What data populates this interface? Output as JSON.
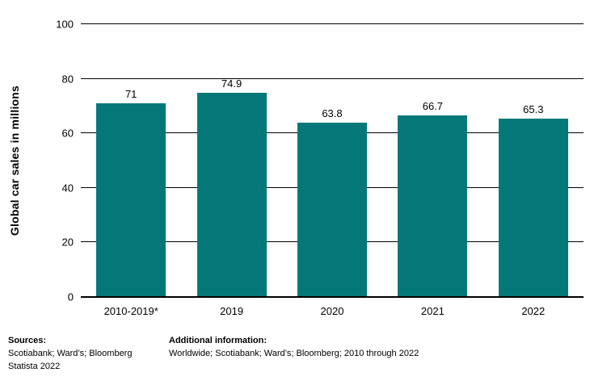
{
  "chart_data": {
    "type": "bar",
    "title": "",
    "categories": [
      "2010-2019*",
      "2019",
      "2020",
      "2021",
      "2022"
    ],
    "values": [
      71,
      74.9,
      63.8,
      66.7,
      65.3
    ],
    "value_labels": [
      "71",
      "74.9",
      "63.8",
      "66.7",
      "65.3"
    ],
    "ylabel": "Global car sales in millions",
    "xlabel": "",
    "ylim": [
      0,
      100
    ],
    "yticks": [
      0,
      20,
      40,
      60,
      80,
      100
    ],
    "grid": "horizontal",
    "legend": "none",
    "bar_color": "#047879",
    "gridline_color": "#000000",
    "text_color": "#000000"
  },
  "footer": {
    "sources_label": "Sources:",
    "sources_line1": "Scotiabank; Ward’s; Bloomberg",
    "sources_line2": "Statista 2022",
    "additional_label": "Additional information:",
    "additional_text": "Worldwide; Scotiabank; Ward’s; Bloomberg; 2010 through 2022"
  }
}
